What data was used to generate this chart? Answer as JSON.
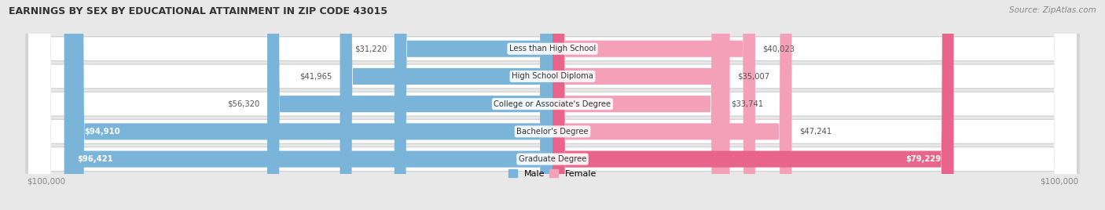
{
  "title": "EARNINGS BY SEX BY EDUCATIONAL ATTAINMENT IN ZIP CODE 43015",
  "source": "Source: ZipAtlas.com",
  "categories": [
    "Less than High School",
    "High School Diploma",
    "College or Associate's Degree",
    "Bachelor's Degree",
    "Graduate Degree"
  ],
  "male_values": [
    31220,
    41965,
    56320,
    94910,
    96421
  ],
  "female_values": [
    40023,
    35007,
    33741,
    47241,
    79229
  ],
  "male_labels": [
    "$31,220",
    "$41,965",
    "$56,320",
    "$94,910",
    "$96,421"
  ],
  "female_labels": [
    "$40,023",
    "$35,007",
    "$33,741",
    "$47,241",
    "$79,229"
  ],
  "max_value": 100000,
  "male_color": "#7ab4d8",
  "female_color": "#f4a0b8",
  "female_color_bold": "#e8648a",
  "bg_color": "#e8e8e8",
  "row_bg_light": "#f8f8f8",
  "row_bg_dark": "#efefef"
}
